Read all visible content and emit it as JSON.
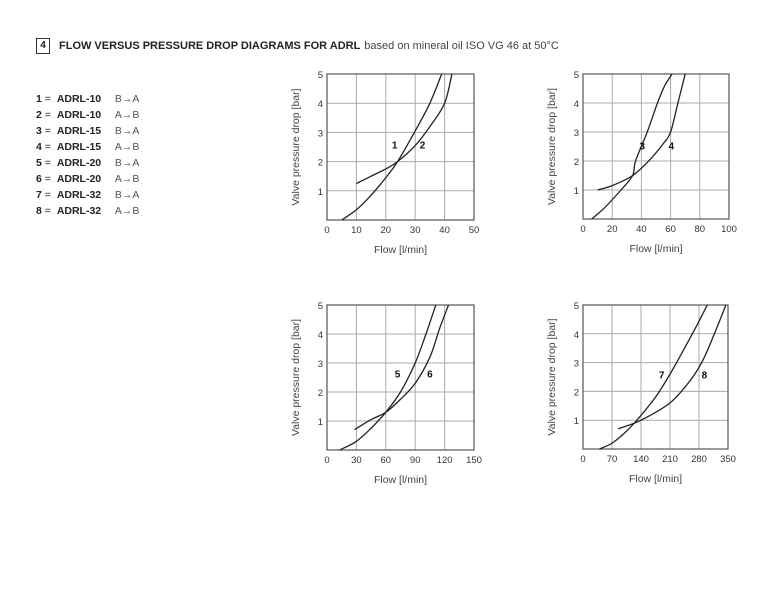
{
  "header": {
    "section_number": "4",
    "title": "FLOW VERSUS PRESSURE DROP DIAGRAMS FOR ADRL",
    "subtitle": "based on mineral oil ISO VG 46 at 50°C"
  },
  "legend": [
    {
      "num": "1",
      "model": "ADRL-10",
      "direction": "B→A"
    },
    {
      "num": "2",
      "model": "ADRL-10",
      "direction": "A→B"
    },
    {
      "num": "3",
      "model": "ADRL-15",
      "direction": "B→A"
    },
    {
      "num": "4",
      "model": "ADRL-15",
      "direction": "A→B"
    },
    {
      "num": "5",
      "model": "ADRL-20",
      "direction": "B→A"
    },
    {
      "num": "6",
      "model": "ADRL-20",
      "direction": "A→B"
    },
    {
      "num": "7",
      "model": "ADRL-32",
      "direction": "B→A"
    },
    {
      "num": "8",
      "model": "ADRL-32",
      "direction": "A→B"
    }
  ],
  "chart_data": [
    {
      "type": "line",
      "xlabel": "Flow [l/min]",
      "ylabel": "Valve pressure drop [bar]",
      "xlim": [
        0,
        50
      ],
      "ylim": [
        0,
        5
      ],
      "grid": true,
      "xticks": [
        "0",
        "10",
        "20",
        "30",
        "40",
        "50"
      ],
      "yticks": [
        "1",
        "2",
        "3",
        "4",
        "5"
      ],
      "series": [
        {
          "name": "1",
          "label_at": [
            23,
            2.45
          ],
          "points": [
            [
              5,
              0
            ],
            [
              10,
              0.35
            ],
            [
              15,
              0.85
            ],
            [
              20,
              1.45
            ],
            [
              24,
              2.0
            ],
            [
              30,
              3.05
            ],
            [
              35,
              4.0
            ],
            [
              39,
              5.0
            ]
          ]
        },
        {
          "name": "2",
          "label_at": [
            32.5,
            2.45
          ],
          "points": [
            [
              10,
              1.25
            ],
            [
              15,
              1.5
            ],
            [
              20,
              1.75
            ],
            [
              24,
              2.0
            ],
            [
              30,
              2.55
            ],
            [
              35,
              3.2
            ],
            [
              40,
              4.0
            ],
            [
              42.5,
              5.0
            ]
          ]
        }
      ]
    },
    {
      "type": "line",
      "xlabel": "Flow [l/min]",
      "ylabel": "Valve pressure drop [bar]",
      "xlim": [
        0,
        100
      ],
      "ylim": [
        0,
        5
      ],
      "grid": true,
      "xticks": [
        "0",
        "20",
        "40",
        "60",
        "80",
        "100"
      ],
      "yticks": [
        "1",
        "2",
        "3",
        "4",
        "5"
      ],
      "series": [
        {
          "name": "3",
          "label_at": [
            40.5,
            2.4
          ],
          "points": [
            [
              6,
              0
            ],
            [
              15,
              0.4
            ],
            [
              26,
              1.0
            ],
            [
              34,
              1.5
            ],
            [
              36,
              2.0
            ],
            [
              44,
              3.0
            ],
            [
              51,
              4.0
            ],
            [
              56,
              4.6
            ],
            [
              61,
              5.0
            ]
          ]
        },
        {
          "name": "4",
          "label_at": [
            60.5,
            2.4
          ],
          "points": [
            [
              10,
              1.0
            ],
            [
              20,
              1.15
            ],
            [
              34,
              1.5
            ],
            [
              45,
              2.0
            ],
            [
              55,
              2.6
            ],
            [
              60,
              3.0
            ],
            [
              65,
              4.0
            ],
            [
              68,
              4.6
            ],
            [
              70,
              5.0
            ]
          ]
        }
      ]
    },
    {
      "type": "line",
      "xlabel": "Flow [l/min]",
      "ylabel": "Valve pressure drop [bar]",
      "xlim": [
        0,
        150
      ],
      "ylim": [
        0,
        5
      ],
      "grid": true,
      "xticks": [
        "0",
        "30",
        "60",
        "90",
        "120",
        "150"
      ],
      "yticks": [
        "1",
        "2",
        "3",
        "4",
        "5"
      ],
      "series": [
        {
          "name": "5",
          "label_at": [
            72,
            2.5
          ],
          "points": [
            [
              13,
              0
            ],
            [
              30,
              0.3
            ],
            [
              45,
              0.75
            ],
            [
              52,
              1.0
            ],
            [
              60,
              1.3
            ],
            [
              75,
              2.0
            ],
            [
              90,
              3.0
            ],
            [
              101,
              4.0
            ],
            [
              111,
              5.0
            ]
          ]
        },
        {
          "name": "6",
          "label_at": [
            105,
            2.5
          ],
          "points": [
            [
              28,
              0.7
            ],
            [
              45,
              1.05
            ],
            [
              60,
              1.3
            ],
            [
              75,
              1.75
            ],
            [
              90,
              2.3
            ],
            [
              105,
              3.2
            ],
            [
              115,
              4.2
            ],
            [
              124,
              5.0
            ]
          ]
        }
      ]
    },
    {
      "type": "line",
      "xlabel": "Flow [l/min]",
      "ylabel": "Valve pressure drop [bar]",
      "xlim": [
        0,
        350
      ],
      "ylim": [
        0,
        5
      ],
      "grid": true,
      "xticks": [
        "0",
        "70",
        "140",
        "210",
        "280",
        "350"
      ],
      "yticks": [
        "1",
        "2",
        "3",
        "4",
        "5"
      ],
      "series": [
        {
          "name": "7",
          "label_at": [
            190,
            2.45
          ],
          "points": [
            [
              40,
              0
            ],
            [
              70,
              0.2
            ],
            [
              100,
              0.55
            ],
            [
              130,
              1.0
            ],
            [
              175,
              1.8
            ],
            [
              210,
              2.6
            ],
            [
              245,
              3.5
            ],
            [
              275,
              4.3
            ],
            [
              300,
              5.0
            ]
          ]
        },
        {
          "name": "8",
          "label_at": [
            293,
            2.45
          ],
          "points": [
            [
              85,
              0.7
            ],
            [
              140,
              1.0
            ],
            [
              210,
              1.6
            ],
            [
              260,
              2.4
            ],
            [
              290,
              3.1
            ],
            [
              320,
              4.1
            ],
            [
              345,
              5.0
            ]
          ]
        }
      ]
    }
  ]
}
